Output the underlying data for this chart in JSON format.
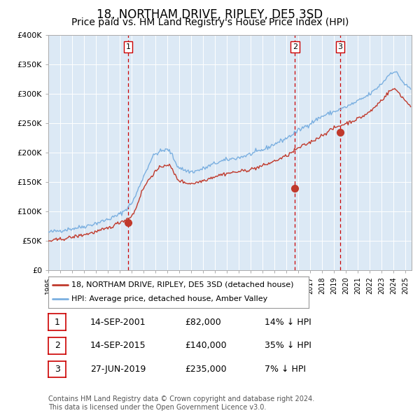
{
  "title": "18, NORTHAM DRIVE, RIPLEY, DE5 3SD",
  "subtitle": "Price paid vs. HM Land Registry's House Price Index (HPI)",
  "title_fontsize": 12,
  "subtitle_fontsize": 10,
  "background_color": "#dce9f5",
  "plot_bg_color": "#dce9f5",
  "hpi_color": "#7aafe0",
  "price_color": "#c0392b",
  "vline_color": "#cc0000",
  "sale_year_vals": [
    2001.708,
    2015.708,
    2019.5
  ],
  "sale_price_vals": [
    82000,
    140000,
    235000
  ],
  "sale_labels": [
    "1",
    "2",
    "3"
  ],
  "legend_line1": "18, NORTHAM DRIVE, RIPLEY, DE5 3SD (detached house)",
  "legend_line2": "HPI: Average price, detached house, Amber Valley",
  "table_rows": [
    [
      "1",
      "14-SEP-2001",
      "£82,000",
      "14% ↓ HPI"
    ],
    [
      "2",
      "14-SEP-2015",
      "£140,000",
      "35% ↓ HPI"
    ],
    [
      "3",
      "27-JUN-2019",
      "£235,000",
      "7% ↓ HPI"
    ]
  ],
  "footer": "Contains HM Land Registry data © Crown copyright and database right 2024.\nThis data is licensed under the Open Government Licence v3.0.",
  "ylim": [
    0,
    400000
  ],
  "yticks": [
    0,
    50000,
    100000,
    150000,
    200000,
    250000,
    300000,
    350000,
    400000
  ],
  "ytick_labels": [
    "£0",
    "£50K",
    "£100K",
    "£150K",
    "£200K",
    "£250K",
    "£300K",
    "£350K",
    "£400K"
  ],
  "xlim": [
    1995,
    2025.5
  ],
  "xtick_years": [
    1995,
    1996,
    1997,
    1998,
    1999,
    2000,
    2001,
    2002,
    2003,
    2004,
    2005,
    2006,
    2007,
    2008,
    2009,
    2010,
    2011,
    2012,
    2013,
    2014,
    2015,
    2016,
    2017,
    2018,
    2019,
    2020,
    2021,
    2022,
    2023,
    2024,
    2025
  ]
}
